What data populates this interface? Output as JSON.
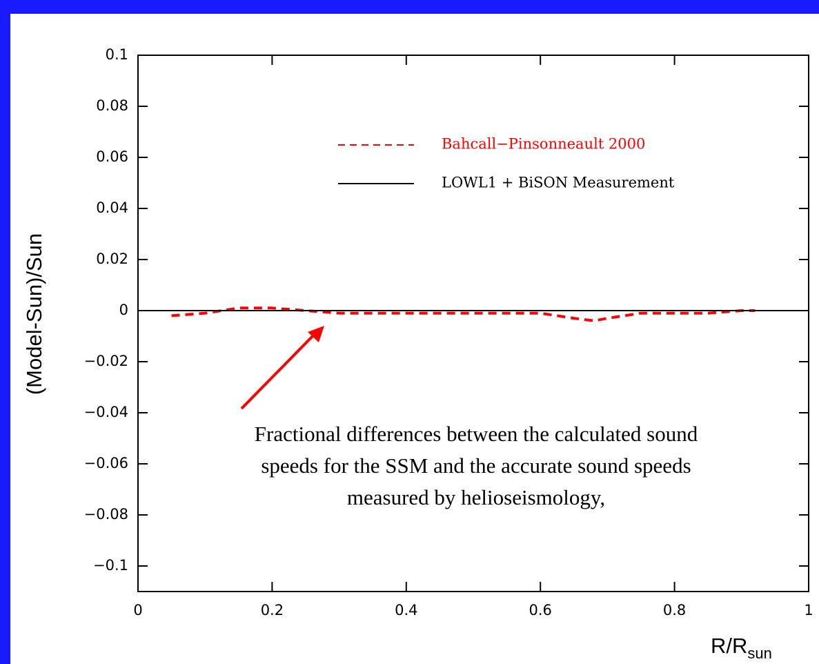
{
  "chart_data": {
    "type": "line",
    "y_label": "(Model-Sun)/Sun",
    "x_label": "R/R",
    "x_label_sub": "sun",
    "annotation": [
      "Fractional differences between the calculated sound",
      "speeds for the SSM and the accurate sound speeds",
      "measured by helioseismology,"
    ],
    "series": [
      {
        "name": "Bahcall−Pinsonneault 2000",
        "color": "#ff0000",
        "dash": true,
        "x": [
          0.05,
          0.1,
          0.15,
          0.2,
          0.25,
          0.3,
          0.4,
          0.5,
          0.55,
          0.6,
          0.65,
          0.68,
          0.7,
          0.75,
          0.8,
          0.85,
          0.9,
          0.92
        ],
        "values": [
          -0.002,
          -0.001,
          0.001,
          0.001,
          0,
          -0.001,
          -0.001,
          -0.001,
          -0.001,
          -0.001,
          -0.003,
          -0.004,
          -0.003,
          -0.001,
          -0.001,
          -0.001,
          0,
          0
        ]
      },
      {
        "name": "LOWL1 + BiSON Measurement",
        "color": "#000000",
        "dash": false,
        "x": [
          0,
          1
        ],
        "values": [
          0,
          0
        ]
      }
    ],
    "xlim": [
      0,
      1
    ],
    "xticks": [
      0,
      0.2,
      0.4,
      0.6,
      0.8,
      1
    ],
    "ylim": [
      -0.11,
      0.1
    ],
    "yticks": [
      0.1,
      0.08,
      0.06,
      0.04,
      0.02,
      0,
      {
        "value": -0.02,
        "label": "−0.02"
      },
      {
        "value": -0.04,
        "label": "−0.04"
      },
      {
        "value": -0.06,
        "label": "−0.06"
      },
      {
        "value": -0.08,
        "label": "−0.08"
      },
      {
        "value": -0.1,
        "label": "−0.1"
      }
    ]
  }
}
